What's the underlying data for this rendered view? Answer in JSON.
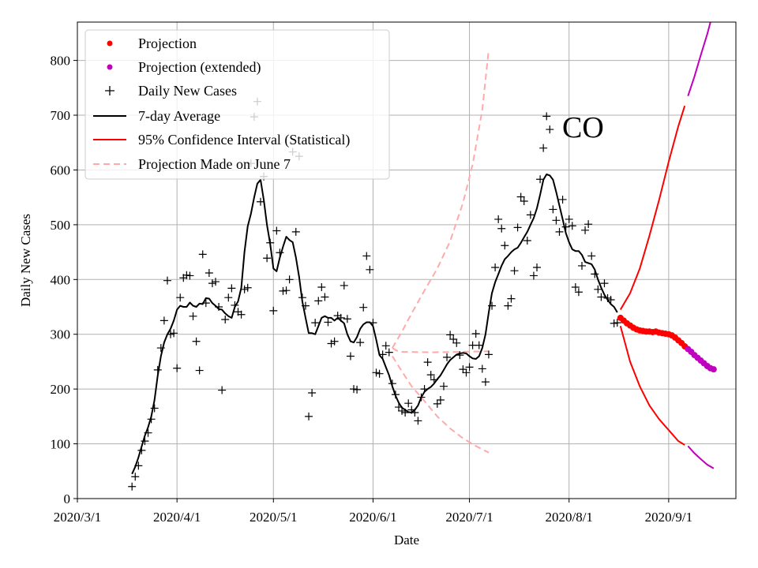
{
  "chart_data": {
    "type": "line",
    "state_label": "CO",
    "xlabel": "Date",
    "ylabel": "Daily New Cases",
    "xlim": [
      0,
      196
    ],
    "ylim": [
      0,
      870
    ],
    "x_ticks": [
      {
        "day": 0,
        "label": "2020/3/1"
      },
      {
        "day": 31,
        "label": "2020/4/1"
      },
      {
        "day": 61,
        "label": "2020/5/1"
      },
      {
        "day": 92,
        "label": "2020/6/1"
      },
      {
        "day": 122,
        "label": "2020/7/1"
      },
      {
        "day": 153,
        "label": "2020/8/1"
      },
      {
        "day": 184,
        "label": "2020/9/1"
      }
    ],
    "y_ticks": [
      0,
      100,
      200,
      300,
      400,
      500,
      600,
      700,
      800
    ],
    "grid": true,
    "legend": [
      {
        "key": "projection",
        "label": "Projection",
        "color": "#ff0000",
        "marker": "dot"
      },
      {
        "key": "projection_ext",
        "label": "Projection (extended)",
        "color": "#bf00bf",
        "marker": "dot"
      },
      {
        "key": "daily",
        "label": "Daily New Cases",
        "color": "#000000",
        "marker": "plus"
      },
      {
        "key": "avg",
        "label": "7-day Average",
        "color": "#000000",
        "marker": "line"
      },
      {
        "key": "ci",
        "label": "95% Confidence Interval (Statistical)",
        "color": "#ff0000",
        "marker": "line"
      },
      {
        "key": "june7",
        "label": "Projection Made on June 7",
        "color": "#ffaaaa",
        "marker": "dashed"
      }
    ],
    "legend_position": "top-left",
    "daily_new_cases": [
      [
        17,
        22
      ],
      [
        18,
        40
      ],
      [
        19,
        60
      ],
      [
        20,
        88
      ],
      [
        21,
        105
      ],
      [
        22,
        120
      ],
      [
        23,
        145
      ],
      [
        24,
        165
      ],
      [
        25,
        235
      ],
      [
        26,
        275
      ],
      [
        27,
        325
      ],
      [
        28,
        398
      ],
      [
        29,
        300
      ],
      [
        30,
        302
      ],
      [
        31,
        238
      ],
      [
        32,
        367
      ],
      [
        33,
        403
      ],
      [
        34,
        408
      ],
      [
        35,
        407
      ],
      [
        36,
        333
      ],
      [
        37,
        287
      ],
      [
        38,
        234
      ],
      [
        39,
        446
      ],
      [
        40,
        357
      ],
      [
        41,
        412
      ],
      [
        42,
        393
      ],
      [
        43,
        396
      ],
      [
        44,
        350
      ],
      [
        45,
        198
      ],
      [
        46,
        327
      ],
      [
        47,
        367
      ],
      [
        48,
        384
      ],
      [
        49,
        353
      ],
      [
        50,
        341
      ],
      [
        51,
        336
      ],
      [
        52,
        382
      ],
      [
        53,
        385
      ],
      [
        54,
        612
      ],
      [
        55,
        697
      ],
      [
        56,
        725
      ],
      [
        57,
        542
      ],
      [
        58,
        588
      ],
      [
        59,
        439
      ],
      [
        60,
        467
      ],
      [
        61,
        343
      ],
      [
        62,
        489
      ],
      [
        63,
        449
      ],
      [
        64,
        379
      ],
      [
        65,
        380
      ],
      [
        66,
        400
      ],
      [
        67,
        633
      ],
      [
        68,
        487
      ],
      [
        69,
        625
      ],
      [
        70,
        367
      ],
      [
        71,
        352
      ],
      [
        72,
        150
      ],
      [
        73,
        193
      ],
      [
        74,
        321
      ],
      [
        75,
        361
      ],
      [
        76,
        386
      ],
      [
        77,
        368
      ],
      [
        78,
        322
      ],
      [
        79,
        283
      ],
      [
        80,
        287
      ],
      [
        81,
        334
      ],
      [
        82,
        330
      ],
      [
        83,
        389
      ],
      [
        84,
        328
      ],
      [
        85,
        260
      ],
      [
        86,
        200
      ],
      [
        87,
        199
      ],
      [
        88,
        285
      ],
      [
        89,
        349
      ],
      [
        90,
        443
      ],
      [
        91,
        418
      ],
      [
        92,
        321
      ],
      [
        93,
        230
      ],
      [
        94,
        228
      ],
      [
        95,
        263
      ],
      [
        96,
        279
      ],
      [
        97,
        267
      ],
      [
        98,
        210
      ],
      [
        99,
        190
      ],
      [
        100,
        167
      ],
      [
        101,
        160
      ],
      [
        102,
        157
      ],
      [
        103,
        174
      ],
      [
        104,
        162
      ],
      [
        105,
        157
      ],
      [
        106,
        142
      ],
      [
        107,
        185
      ],
      [
        108,
        200
      ],
      [
        109,
        249
      ],
      [
        110,
        226
      ],
      [
        111,
        217
      ],
      [
        112,
        173
      ],
      [
        113,
        180
      ],
      [
        114,
        205
      ],
      [
        115,
        258
      ],
      [
        116,
        299
      ],
      [
        117,
        291
      ],
      [
        118,
        284
      ],
      [
        119,
        262
      ],
      [
        120,
        236
      ],
      [
        121,
        230
      ],
      [
        122,
        240
      ],
      [
        123,
        280
      ],
      [
        124,
        301
      ],
      [
        125,
        280
      ],
      [
        126,
        237
      ],
      [
        127,
        213
      ],
      [
        128,
        263
      ],
      [
        129,
        352
      ],
      [
        130,
        422
      ],
      [
        131,
        510
      ],
      [
        132,
        493
      ],
      [
        133,
        462
      ],
      [
        134,
        352
      ],
      [
        135,
        365
      ],
      [
        136,
        416
      ],
      [
        137,
        495
      ],
      [
        138,
        551
      ],
      [
        139,
        543
      ],
      [
        140,
        471
      ],
      [
        141,
        518
      ],
      [
        142,
        407
      ],
      [
        143,
        422
      ],
      [
        144,
        583
      ],
      [
        145,
        640
      ],
      [
        146,
        698
      ],
      [
        147,
        674
      ],
      [
        148,
        528
      ],
      [
        149,
        508
      ],
      [
        150,
        487
      ],
      [
        151,
        546
      ],
      [
        152,
        496
      ],
      [
        153,
        510
      ],
      [
        154,
        498
      ],
      [
        155,
        386
      ],
      [
        156,
        377
      ],
      [
        157,
        425
      ],
      [
        158,
        490
      ],
      [
        159,
        501
      ],
      [
        160,
        443
      ],
      [
        161,
        410
      ],
      [
        162,
        382
      ],
      [
        163,
        368
      ],
      [
        164,
        393
      ],
      [
        165,
        366
      ],
      [
        166,
        363
      ],
      [
        167,
        320
      ],
      [
        168,
        321
      ]
    ],
    "seven_day_average": [
      [
        17,
        45
      ],
      [
        18,
        58
      ],
      [
        19,
        75
      ],
      [
        20,
        95
      ],
      [
        21,
        115
      ],
      [
        22,
        130
      ],
      [
        23,
        150
      ],
      [
        24,
        180
      ],
      [
        25,
        225
      ],
      [
        26,
        260
      ],
      [
        27,
        285
      ],
      [
        28,
        300
      ],
      [
        29,
        310
      ],
      [
        30,
        325
      ],
      [
        31,
        345
      ],
      [
        32,
        352
      ],
      [
        33,
        350
      ],
      [
        34,
        350
      ],
      [
        35,
        358
      ],
      [
        36,
        352
      ],
      [
        37,
        350
      ],
      [
        38,
        356
      ],
      [
        39,
        355
      ],
      [
        40,
        366
      ],
      [
        41,
        365
      ],
      [
        42,
        357
      ],
      [
        43,
        352
      ],
      [
        44,
        346
      ],
      [
        45,
        345
      ],
      [
        46,
        338
      ],
      [
        47,
        333
      ],
      [
        48,
        330
      ],
      [
        49,
        350
      ],
      [
        50,
        360
      ],
      [
        51,
        385
      ],
      [
        52,
        450
      ],
      [
        53,
        497
      ],
      [
        54,
        520
      ],
      [
        55,
        550
      ],
      [
        56,
        575
      ],
      [
        57,
        582
      ],
      [
        58,
        545
      ],
      [
        59,
        500
      ],
      [
        60,
        465
      ],
      [
        61,
        420
      ],
      [
        62,
        415
      ],
      [
        63,
        440
      ],
      [
        64,
        460
      ],
      [
        65,
        478
      ],
      [
        66,
        472
      ],
      [
        67,
        468
      ],
      [
        68,
        440
      ],
      [
        69,
        405
      ],
      [
        70,
        360
      ],
      [
        71,
        330
      ],
      [
        72,
        302
      ],
      [
        73,
        302
      ],
      [
        74,
        300
      ],
      [
        75,
        315
      ],
      [
        76,
        330
      ],
      [
        77,
        333
      ],
      [
        78,
        330
      ],
      [
        79,
        330
      ],
      [
        80,
        325
      ],
      [
        81,
        330
      ],
      [
        82,
        325
      ],
      [
        83,
        320
      ],
      [
        84,
        300
      ],
      [
        85,
        287
      ],
      [
        86,
        285
      ],
      [
        87,
        295
      ],
      [
        88,
        310
      ],
      [
        89,
        318
      ],
      [
        90,
        322
      ],
      [
        91,
        322
      ],
      [
        92,
        315
      ],
      [
        93,
        290
      ],
      [
        94,
        262
      ],
      [
        95,
        255
      ],
      [
        96,
        240
      ],
      [
        97,
        225
      ],
      [
        98,
        205
      ],
      [
        99,
        188
      ],
      [
        100,
        175
      ],
      [
        101,
        166
      ],
      [
        102,
        162
      ],
      [
        103,
        158
      ],
      [
        104,
        157
      ],
      [
        105,
        162
      ],
      [
        106,
        170
      ],
      [
        107,
        185
      ],
      [
        108,
        195
      ],
      [
        109,
        200
      ],
      [
        110,
        204
      ],
      [
        111,
        210
      ],
      [
        112,
        218
      ],
      [
        113,
        225
      ],
      [
        114,
        235
      ],
      [
        115,
        245
      ],
      [
        116,
        253
      ],
      [
        117,
        258
      ],
      [
        118,
        263
      ],
      [
        119,
        265
      ],
      [
        120,
        266
      ],
      [
        121,
        265
      ],
      [
        122,
        260
      ],
      [
        123,
        256
      ],
      [
        124,
        255
      ],
      [
        125,
        260
      ],
      [
        126,
        275
      ],
      [
        127,
        300
      ],
      [
        128,
        340
      ],
      [
        129,
        375
      ],
      [
        130,
        395
      ],
      [
        131,
        410
      ],
      [
        132,
        425
      ],
      [
        133,
        437
      ],
      [
        134,
        443
      ],
      [
        135,
        450
      ],
      [
        136,
        455
      ],
      [
        137,
        458
      ],
      [
        138,
        467
      ],
      [
        139,
        477
      ],
      [
        140,
        487
      ],
      [
        141,
        500
      ],
      [
        142,
        512
      ],
      [
        143,
        530
      ],
      [
        144,
        555
      ],
      [
        145,
        582
      ],
      [
        146,
        592
      ],
      [
        147,
        590
      ],
      [
        148,
        582
      ],
      [
        149,
        560
      ],
      [
        150,
        535
      ],
      [
        151,
        510
      ],
      [
        152,
        485
      ],
      [
        153,
        468
      ],
      [
        154,
        455
      ],
      [
        155,
        452
      ],
      [
        156,
        452
      ],
      [
        157,
        445
      ],
      [
        158,
        432
      ],
      [
        159,
        430
      ],
      [
        160,
        428
      ],
      [
        161,
        418
      ],
      [
        162,
        400
      ],
      [
        163,
        385
      ],
      [
        164,
        372
      ],
      [
        165,
        363
      ],
      [
        166,
        355
      ],
      [
        167,
        350
      ],
      [
        168,
        340
      ]
    ],
    "projection": [
      [
        169,
        330
      ],
      [
        170,
        325
      ],
      [
        171,
        320
      ],
      [
        172,
        316
      ],
      [
        173,
        312
      ],
      [
        174,
        309
      ],
      [
        175,
        307
      ],
      [
        176,
        306
      ],
      [
        177,
        305
      ],
      [
        178,
        305
      ],
      [
        179,
        304
      ],
      [
        180,
        305
      ],
      [
        181,
        303
      ],
      [
        182,
        302
      ],
      [
        183,
        301
      ],
      [
        184,
        300
      ],
      [
        185,
        298
      ],
      [
        186,
        294
      ],
      [
        187,
        289
      ],
      [
        188,
        284
      ],
      [
        189,
        278
      ]
    ],
    "projection_extended": [
      [
        190,
        273
      ],
      [
        191,
        268
      ],
      [
        192,
        262
      ],
      [
        193,
        257
      ],
      [
        194,
        252
      ],
      [
        195,
        247
      ],
      [
        196,
        242
      ],
      [
        197,
        238
      ],
      [
        198,
        236
      ]
    ],
    "ci_upper": [
      [
        169,
        345
      ],
      [
        172,
        375
      ],
      [
        175,
        420
      ],
      [
        178,
        480
      ],
      [
        181,
        545
      ],
      [
        184,
        615
      ],
      [
        187,
        680
      ],
      [
        189,
        717
      ]
    ],
    "ci_lower": [
      [
        169,
        315
      ],
      [
        172,
        250
      ],
      [
        175,
        205
      ],
      [
        178,
        170
      ],
      [
        181,
        145
      ],
      [
        184,
        125
      ],
      [
        187,
        105
      ],
      [
        189,
        98
      ]
    ],
    "ci_upper_extended": [
      [
        190,
        735
      ],
      [
        192,
        770
      ],
      [
        194,
        810
      ],
      [
        196,
        848
      ],
      [
        197,
        870
      ]
    ],
    "ci_lower_extended": [
      [
        190,
        96
      ],
      [
        192,
        83
      ],
      [
        194,
        72
      ],
      [
        196,
        62
      ],
      [
        198,
        55
      ]
    ],
    "june7_projection": {
      "center": [
        [
          98,
          275
        ],
        [
          100,
          268
        ],
        [
          110,
          267
        ],
        [
          120,
          268
        ],
        [
          128,
          269
        ]
      ],
      "upper": [
        [
          98,
          275
        ],
        [
          101,
          305
        ],
        [
          104,
          338
        ],
        [
          108,
          380
        ],
        [
          112,
          420
        ],
        [
          116,
          470
        ],
        [
          120,
          540
        ],
        [
          123,
          610
        ],
        [
          126,
          710
        ],
        [
          128,
          820
        ]
      ],
      "lower": [
        [
          98,
          260
        ],
        [
          101,
          232
        ],
        [
          104,
          205
        ],
        [
          108,
          178
        ],
        [
          112,
          150
        ],
        [
          116,
          128
        ],
        [
          120,
          110
        ],
        [
          124,
          96
        ],
        [
          128,
          84
        ]
      ]
    }
  }
}
